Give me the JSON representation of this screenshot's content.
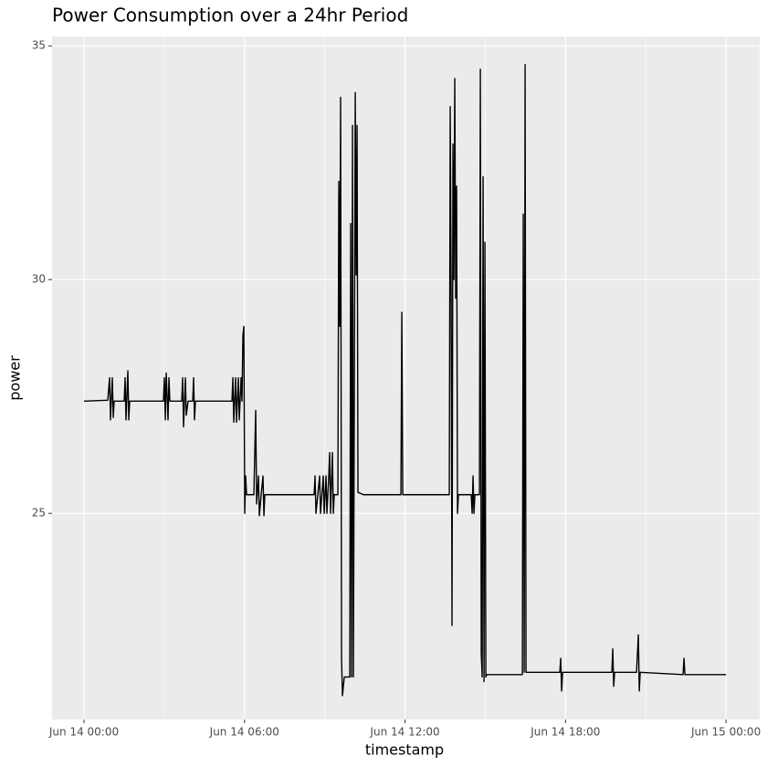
{
  "chart_data": {
    "type": "line",
    "title": "Power Consumption over a 24hr Period",
    "x_label": "timestamp",
    "y_label": "power",
    "color": "#000000",
    "grid": true,
    "xlim": [
      -1.195,
      25.26
    ],
    "ylim": [
      20.59,
      35.2
    ],
    "xticks": [
      {
        "value": 0,
        "label": "Jun 14 00:00"
      },
      {
        "value": 6,
        "label": "Jun 14 06:00"
      },
      {
        "value": 12,
        "label": "Jun 14 12:00"
      },
      {
        "value": 18,
        "label": "Jun 14 18:00"
      },
      {
        "value": 24,
        "label": "Jun 15 00:00"
      }
    ],
    "yticks": [
      25,
      30,
      35
    ],
    "x": [
      0,
      0.888,
      0.956,
      0.99,
      1.058,
      1.093,
      1.127,
      1.502,
      1.536,
      1.57,
      1.639,
      1.673,
      1.707,
      2.97,
      3.004,
      3.038,
      3.073,
      3.141,
      3.175,
      3.209,
      3.653,
      3.687,
      3.721,
      3.79,
      3.824,
      3.892,
      4.063,
      4.097,
      4.131,
      4.165,
      5.531,
      5.565,
      5.599,
      5.667,
      5.701,
      5.77,
      5.804,
      5.872,
      5.906,
      5.94,
      5.975,
      6.009,
      6.043,
      6.077,
      6.35,
      6.418,
      6.453,
      6.521,
      6.555,
      6.623,
      6.691,
      6.726,
      6.76,
      8.603,
      8.637,
      8.672,
      8.74,
      8.808,
      8.842,
      8.945,
      8.979,
      9.047,
      9.081,
      9.15,
      9.184,
      9.218,
      9.286,
      9.32,
      9.354,
      9.491,
      9.525,
      9.559,
      9.593,
      9.628,
      9.662,
      9.73,
      9.935,
      9.969,
      10.003,
      10.037,
      10.071,
      10.14,
      10.174,
      10.208,
      10.242,
      10.447,
      11.847,
      11.881,
      11.915,
      13.656,
      13.69,
      13.724,
      13.758,
      13.793,
      13.827,
      13.861,
      13.895,
      13.929,
      13.963,
      13.997,
      14.475,
      14.51,
      14.544,
      14.578,
      14.612,
      14.783,
      14.817,
      14.851,
      14.885,
      14.919,
      14.954,
      14.988,
      15.022,
      15.056,
      16.387,
      16.421,
      16.456,
      16.49,
      16.524,
      17.787,
      17.821,
      17.856,
      17.89,
      19.733,
      19.767,
      19.802,
      19.836,
      20.655,
      20.724,
      20.758,
      20.792,
      22.396,
      22.43,
      22.465,
      24
    ],
    "values": [
      27.4,
      27.42,
      27.9,
      27.0,
      27.9,
      27.05,
      27.4,
      27.4,
      27.9,
      27.0,
      28.05,
      27.0,
      27.4,
      27.4,
      27.9,
      27.0,
      28.0,
      27.0,
      27.9,
      27.4,
      27.4,
      27.9,
      26.85,
      27.9,
      27.1,
      27.4,
      27.4,
      27.9,
      27.0,
      27.4,
      27.4,
      27.9,
      26.95,
      27.9,
      26.95,
      27.9,
      27.0,
      27.9,
      27.4,
      28.8,
      29.0,
      25.0,
      25.8,
      25.4,
      25.4,
      27.2,
      25.2,
      25.8,
      24.95,
      25.4,
      25.8,
      24.95,
      25.4,
      25.4,
      25.8,
      25.0,
      25.4,
      25.8,
      25.0,
      25.8,
      25.0,
      25.8,
      25.0,
      25.8,
      26.3,
      25.0,
      26.3,
      25.0,
      25.4,
      25.4,
      32.1,
      29.0,
      33.9,
      21.9,
      21.1,
      21.5,
      21.5,
      31.2,
      21.5,
      33.3,
      21.5,
      34.0,
      30.1,
      33.3,
      25.45,
      25.4,
      25.4,
      29.3,
      25.4,
      25.4,
      33.7,
      29.8,
      22.6,
      32.9,
      30.0,
      34.3,
      29.6,
      32.0,
      25.0,
      25.4,
      25.4,
      25.0,
      25.8,
      25.0,
      25.4,
      25.4,
      34.5,
      22.0,
      21.5,
      32.2,
      21.4,
      30.8,
      21.5,
      21.55,
      21.55,
      31.4,
      21.6,
      34.6,
      21.6,
      21.6,
      21.9,
      21.2,
      21.6,
      21.6,
      22.1,
      21.3,
      21.6,
      21.6,
      22.4,
      21.2,
      21.6,
      21.55,
      21.9,
      21.55,
      21.55
    ]
  }
}
